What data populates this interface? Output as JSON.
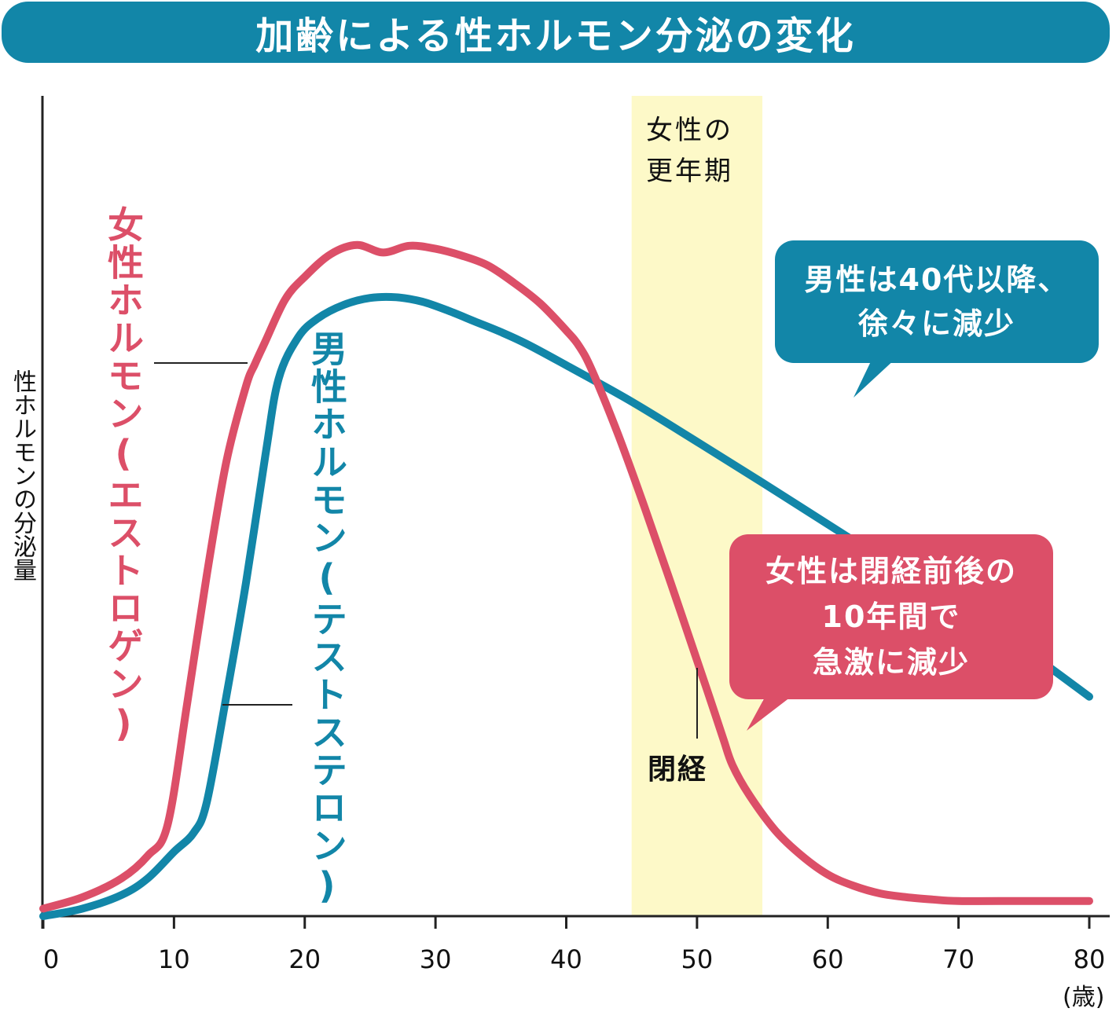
{
  "title": "加齢による性ホルモン分泌の変化",
  "colors": {
    "title_bg": "#1286a8",
    "male": "#1286a8",
    "female": "#dc4f68",
    "menopause_band": "#fdf9c8"
  },
  "chart_data": {
    "type": "line",
    "title": "加齢による性ホルモン分泌の変化",
    "xlabel": "(歳)",
    "ylabel": "性ホルモンの分泌量",
    "xlim": [
      0,
      80
    ],
    "ylim": [
      0,
      100
    ],
    "x_ticks": [
      "0",
      "10",
      "20",
      "30",
      "40",
      "50",
      "60",
      "70",
      "80"
    ],
    "x_tick_values": [
      0,
      10,
      20,
      30,
      40,
      50,
      60,
      70,
      80
    ],
    "y_ticks_shown": false,
    "grid": false,
    "series": [
      {
        "name": "女性ホルモン(エストロゲン)",
        "color": "#dc4f68",
        "x": [
          0,
          3,
          6,
          8,
          9.5,
          11,
          12.5,
          14,
          15.5,
          16.2,
          17,
          18.5,
          20,
          22,
          24,
          26,
          28,
          30,
          32,
          34,
          36,
          38,
          40,
          41,
          42,
          44,
          46,
          48,
          50,
          51,
          52,
          52.7,
          54,
          56,
          58,
          60,
          62,
          64,
          66,
          68,
          70,
          75,
          80
        ],
        "values": [
          1,
          2.5,
          5,
          8,
          12,
          28,
          45,
          60,
          70,
          73,
          76,
          81.5,
          84.5,
          87.5,
          88.7,
          87.7,
          88.6,
          88.2,
          87.3,
          86,
          83.7,
          81,
          77.4,
          75.3,
          72,
          63.5,
          54,
          44,
          33.8,
          28.7,
          23.5,
          20,
          16,
          11.3,
          8,
          5.5,
          4,
          3,
          2.5,
          2.2,
          2,
          2,
          2
        ]
      },
      {
        "name": "男性ホルモン(テストステロン)",
        "color": "#1286a8",
        "x": [
          0,
          3,
          6,
          8,
          10,
          11.5,
          12.5,
          14,
          15.5,
          17,
          18,
          19.5,
          21,
          23,
          25,
          27,
          29,
          31,
          33,
          35,
          37,
          40,
          45,
          50,
          55,
          60,
          65,
          70,
          75,
          80
        ],
        "values": [
          0,
          1,
          2.8,
          5,
          8.5,
          11,
          15,
          29,
          44,
          61,
          71,
          76.5,
          79,
          80.8,
          81.7,
          81.8,
          81.2,
          80,
          78.6,
          77.2,
          75.6,
          72.8,
          68,
          62.7,
          57.3,
          51.8,
          46.3,
          40.8,
          35.3,
          29
        ]
      }
    ],
    "annotations": {
      "series_labels": {
        "female": "女性ホルモン(エストロゲン)",
        "male": "男性ホルモン(テストステロン)"
      },
      "menopause_period": {
        "label_line1": "女性の",
        "label_line2": "更年期",
        "x_range": [
          45,
          55
        ]
      },
      "menopause": {
        "label": "閉経",
        "x": 50
      },
      "callout_male": {
        "line1": "男性は40代以降、",
        "line2": "徐々に減少"
      },
      "callout_female": {
        "line1": "女性は閉経前後の",
        "line2": "10年間で",
        "line3": "急激に減少"
      }
    }
  }
}
